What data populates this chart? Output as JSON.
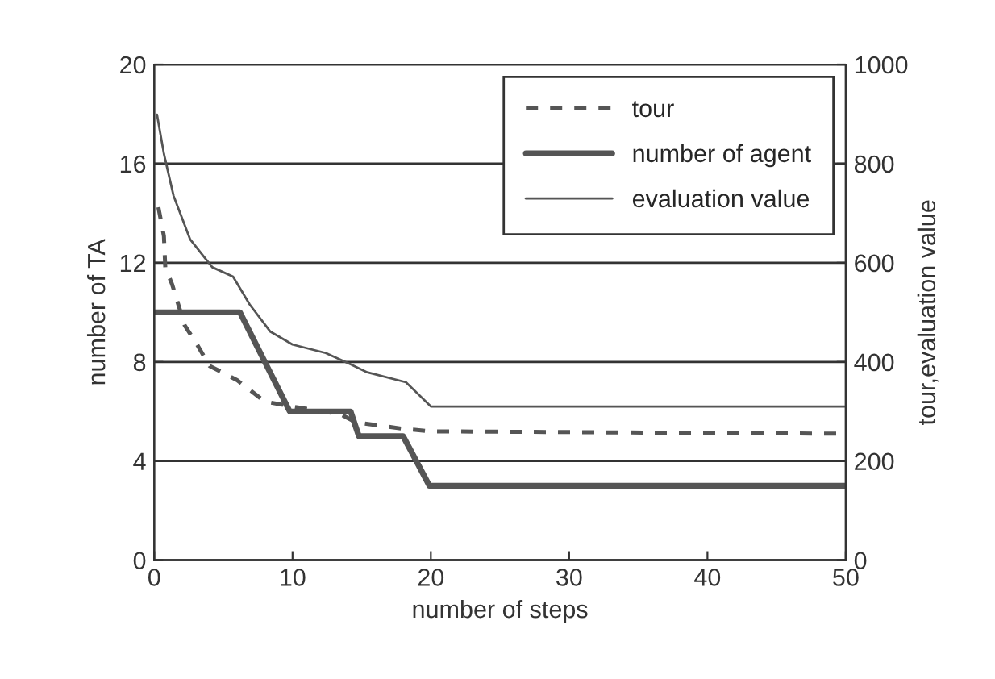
{
  "chart_data": {
    "type": "line",
    "xlabel": "number of steps",
    "ylabel": "number of TA",
    "y2label": "tour,evaluation value",
    "xlim": [
      0,
      50
    ],
    "xticks": [
      0,
      10,
      20,
      30,
      40,
      50
    ],
    "ylim": [
      0,
      20
    ],
    "yticks": [
      0,
      4,
      8,
      12,
      16,
      20
    ],
    "y2lim": [
      0,
      1000
    ],
    "y2ticks": [
      0,
      200,
      400,
      600,
      800,
      1000
    ],
    "grid": "y",
    "legend": "top right",
    "marker": "none",
    "series": [
      {
        "name": "tour",
        "color": "#555555",
        "axis": "y2",
        "line_style": "dashed",
        "x": [
          0.3,
          0.7,
          0.8,
          1.3,
          2.2,
          3.1,
          4,
          6,
          8,
          10,
          13.5,
          14.6,
          18,
          20,
          50
        ],
        "values": [
          712,
          654,
          591,
          556,
          474,
          435,
          392,
          363,
          320,
          310,
          294,
          278,
          265,
          260,
          255
        ]
      },
      {
        "name": "number of agent",
        "color": "#555555",
        "axis": "y",
        "line_style": "solid",
        "x": [
          0,
          6.2,
          9.8,
          14.2,
          14.8,
          18,
          19.9,
          50
        ],
        "values": [
          10,
          10,
          6,
          6,
          5,
          5,
          3,
          3
        ]
      },
      {
        "name": "evaluation value",
        "color": "#555555",
        "axis": "y2",
        "line_style": "solid",
        "x": [
          0.2,
          0.7,
          1.4,
          2.6,
          4.2,
          5.7,
          6.9,
          8.4,
          10,
          12.4,
          14.2,
          15.4,
          18.2,
          20,
          50
        ],
        "values": [
          899,
          820,
          735,
          647,
          591,
          572,
          516,
          461,
          435,
          418,
          395,
          379,
          359,
          310,
          310
        ]
      }
    ]
  }
}
